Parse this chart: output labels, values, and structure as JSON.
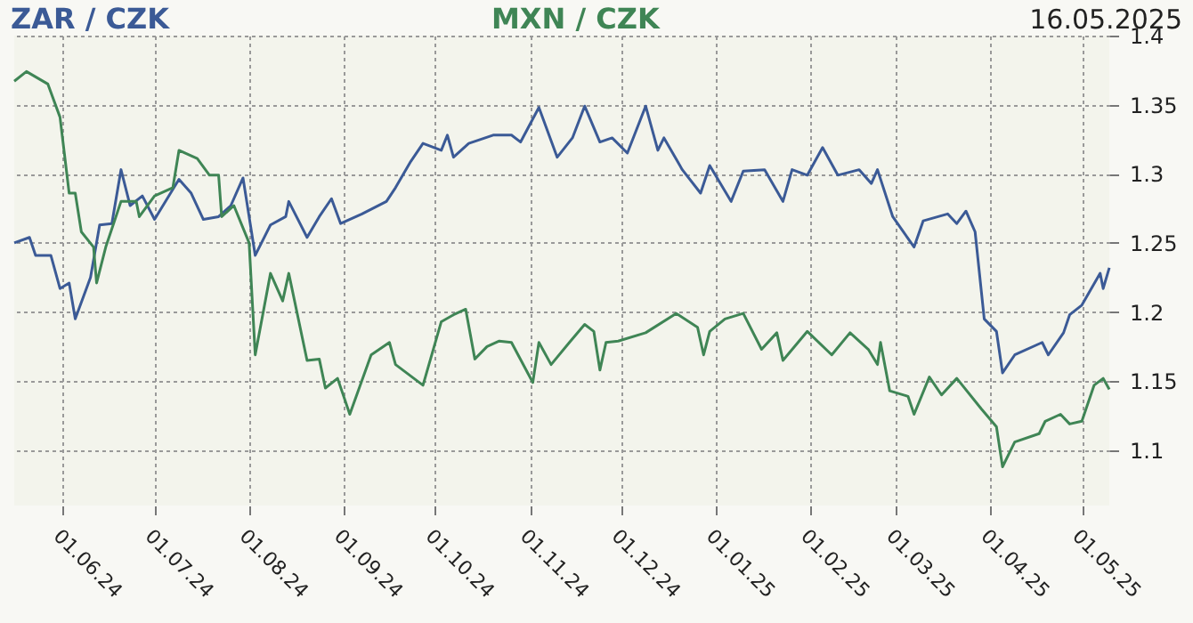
{
  "chart_data": {
    "type": "line",
    "title": "16.05.2025",
    "legend": "top",
    "grid": true,
    "xlim": [
      "2024-05-16",
      "2025-05-10"
    ],
    "ylim": [
      1.06,
      1.4
    ],
    "yticks": [
      1.1,
      1.15,
      1.2,
      1.25,
      1.3,
      1.35,
      1.4
    ],
    "xticks": [
      {
        "value": "2024-06-01",
        "label": "01.06.24"
      },
      {
        "value": "2024-07-01",
        "label": "01.07.24"
      },
      {
        "value": "2024-08-01",
        "label": "01.08.24"
      },
      {
        "value": "2024-09-01",
        "label": "01.09.24"
      },
      {
        "value": "2024-10-01",
        "label": "01.10.24"
      },
      {
        "value": "2024-11-01",
        "label": "01.11.24"
      },
      {
        "value": "2024-12-01",
        "label": "01.12.24"
      },
      {
        "value": "2025-01-01",
        "label": "01.01.25"
      },
      {
        "value": "2025-02-01",
        "label": "01.02.25"
      },
      {
        "value": "2025-03-01",
        "label": "01.03.25"
      },
      {
        "value": "2025-04-01",
        "label": "01.04.25"
      },
      {
        "value": "2025-05-01",
        "label": "01.05.25"
      }
    ],
    "series": [
      {
        "name": "ZAR / CZK",
        "color": "#3b5a96",
        "x": [
          "2024-05-16",
          "2024-05-21",
          "2024-05-23",
          "2024-05-28",
          "2024-05-31",
          "2024-06-03",
          "2024-06-05",
          "2024-06-10",
          "2024-06-13",
          "2024-06-17",
          "2024-06-20",
          "2024-06-23",
          "2024-06-27",
          "2024-07-01",
          "2024-07-09",
          "2024-07-13",
          "2024-07-17",
          "2024-07-22",
          "2024-07-26",
          "2024-07-30",
          "2024-08-03",
          "2024-08-08",
          "2024-08-13",
          "2024-08-14",
          "2024-08-20",
          "2024-08-24",
          "2024-08-28",
          "2024-08-31",
          "2024-09-07",
          "2024-09-15",
          "2024-09-18",
          "2024-09-23",
          "2024-09-27",
          "2024-10-03",
          "2024-10-05",
          "2024-10-07",
          "2024-10-12",
          "2024-10-20",
          "2024-10-26",
          "2024-10-29",
          "2024-11-04",
          "2024-11-10",
          "2024-11-15",
          "2024-11-19",
          "2024-11-24",
          "2024-11-28",
          "2024-12-03",
          "2024-12-09",
          "2024-12-13",
          "2024-12-15",
          "2024-12-21",
          "2024-12-27",
          "2024-12-30",
          "2025-01-06",
          "2025-01-10",
          "2025-01-17",
          "2025-01-23",
          "2025-01-26",
          "2025-01-31",
          "2025-02-05",
          "2025-02-10",
          "2025-02-17",
          "2025-02-21",
          "2025-02-23",
          "2025-02-28",
          "2025-03-07",
          "2025-03-10",
          "2025-03-18",
          "2025-03-21",
          "2025-03-24",
          "2025-03-27",
          "2025-03-30",
          "2025-04-03",
          "2025-04-05",
          "2025-04-09",
          "2025-04-18",
          "2025-04-20",
          "2025-04-25",
          "2025-04-27",
          "2025-05-01",
          "2025-05-07",
          "2025-05-08",
          "2025-05-10"
        ],
        "values": [
          1.25,
          1.254,
          1.241,
          1.241,
          1.217,
          1.221,
          1.195,
          1.225,
          1.263,
          1.264,
          1.303,
          1.277,
          1.284,
          1.267,
          1.296,
          1.286,
          1.267,
          1.269,
          1.277,
          1.297,
          1.241,
          1.263,
          1.269,
          1.28,
          1.254,
          1.269,
          1.282,
          1.264,
          1.271,
          1.28,
          1.29,
          1.309,
          1.322,
          1.317,
          1.328,
          1.312,
          1.322,
          1.328,
          1.328,
          1.323,
          1.348,
          1.312,
          1.326,
          1.349,
          1.323,
          1.326,
          1.315,
          1.349,
          1.317,
          1.326,
          1.303,
          1.286,
          1.306,
          1.28,
          1.302,
          1.303,
          1.28,
          1.303,
          1.299,
          1.319,
          1.299,
          1.303,
          1.293,
          1.303,
          1.269,
          1.247,
          1.266,
          1.271,
          1.264,
          1.273,
          1.258,
          1.195,
          1.186,
          1.156,
          1.169,
          1.178,
          1.169,
          1.185,
          1.198,
          1.205,
          1.228,
          1.217,
          1.232
        ]
      },
      {
        "name": "MXN / CZK",
        "color": "#3f8555",
        "x": [
          "2024-05-16",
          "2024-05-20",
          "2024-05-27",
          "2024-05-31",
          "2024-06-03",
          "2024-06-05",
          "2024-06-07",
          "2024-06-11",
          "2024-06-12",
          "2024-06-15",
          "2024-06-20",
          "2024-06-25",
          "2024-06-26",
          "2024-07-01",
          "2024-07-07",
          "2024-07-09",
          "2024-07-15",
          "2024-07-19",
          "2024-07-22",
          "2024-07-23",
          "2024-07-27",
          "2024-08-01",
          "2024-08-03",
          "2024-08-08",
          "2024-08-12",
          "2024-08-14",
          "2024-08-20",
          "2024-08-24",
          "2024-08-26",
          "2024-08-30",
          "2024-09-03",
          "2024-09-10",
          "2024-09-16",
          "2024-09-18",
          "2024-09-27",
          "2024-10-03",
          "2024-10-07",
          "2024-10-11",
          "2024-10-14",
          "2024-10-18",
          "2024-10-22",
          "2024-10-26",
          "2024-11-02",
          "2024-11-04",
          "2024-11-08",
          "2024-11-14",
          "2024-11-19",
          "2024-11-22",
          "2024-11-24",
          "2024-11-26",
          "2024-11-30",
          "2024-12-09",
          "2024-12-19",
          "2024-12-26",
          "2024-12-28",
          "2024-12-30",
          "2025-01-04",
          "2025-01-10",
          "2025-01-16",
          "2025-01-21",
          "2025-01-23",
          "2025-01-31",
          "2025-02-08",
          "2025-02-14",
          "2025-02-20",
          "2025-02-23",
          "2025-02-24",
          "2025-02-27",
          "2025-03-05",
          "2025-03-07",
          "2025-03-12",
          "2025-03-16",
          "2025-03-21",
          "2025-03-29",
          "2025-04-03",
          "2025-04-05",
          "2025-04-09",
          "2025-04-17",
          "2025-04-19",
          "2025-04-24",
          "2025-04-27",
          "2025-05-01",
          "2025-05-05",
          "2025-05-08",
          "2025-05-10"
        ],
        "values": [
          1.367,
          1.374,
          1.365,
          1.341,
          1.286,
          1.286,
          1.258,
          1.247,
          1.221,
          1.247,
          1.28,
          1.28,
          1.269,
          1.284,
          1.29,
          1.317,
          1.311,
          1.299,
          1.299,
          1.269,
          1.277,
          1.25,
          1.169,
          1.228,
          1.208,
          1.228,
          1.165,
          1.166,
          1.145,
          1.152,
          1.126,
          1.169,
          1.178,
          1.162,
          1.147,
          1.193,
          1.198,
          1.202,
          1.166,
          1.175,
          1.179,
          1.178,
          1.149,
          1.178,
          1.162,
          1.178,
          1.191,
          1.186,
          1.158,
          1.178,
          1.179,
          1.185,
          1.199,
          1.189,
          1.169,
          1.186,
          1.195,
          1.199,
          1.173,
          1.185,
          1.165,
          1.186,
          1.169,
          1.185,
          1.173,
          1.162,
          1.178,
          1.143,
          1.139,
          1.126,
          1.153,
          1.14,
          1.152,
          1.13,
          1.117,
          1.088,
          1.106,
          1.112,
          1.121,
          1.126,
          1.119,
          1.121,
          1.147,
          1.152,
          1.144
        ]
      }
    ]
  }
}
